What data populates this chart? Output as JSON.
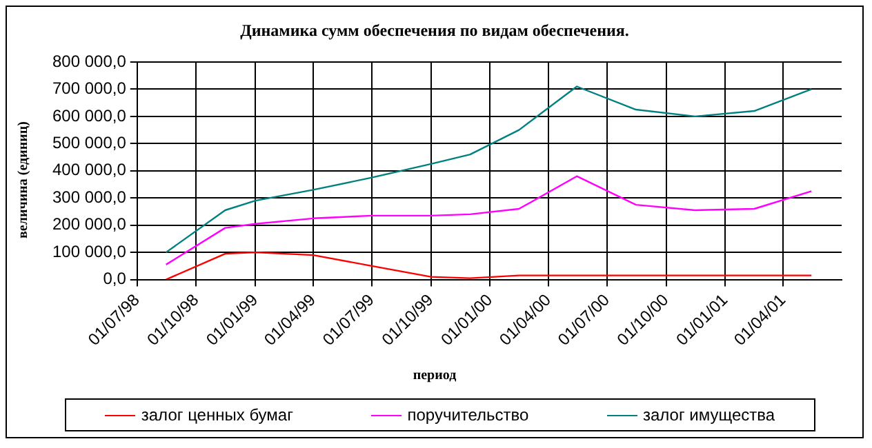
{
  "chart_data": {
    "type": "line",
    "title": "Динамика сумм обеспечения по видам обеспечения.",
    "xlabel": "период",
    "ylabel": "величина (единиц)",
    "x": [
      "1998-08-15",
      "1998-11-15",
      "1999-01-01",
      "1999-04-01",
      "1999-07-01",
      "1999-10-01",
      "1999-12-01",
      "2000-02-15",
      "2000-05-15",
      "2000-08-15",
      "2000-11-15",
      "2001-02-15",
      "2001-05-15"
    ],
    "series": [
      {
        "name": "залог ценных бумаг",
        "color": "#ff0000",
        "values": [
          0,
          95000,
          100000,
          90000,
          50000,
          10000,
          5000,
          15000,
          15000,
          15000,
          15000,
          15000,
          15000
        ]
      },
      {
        "name": "поручительство",
        "color": "#ff00ff",
        "values": [
          55000,
          190000,
          205000,
          225000,
          235000,
          235000,
          240000,
          260000,
          380000,
          275000,
          255000,
          260000,
          325000
        ]
      },
      {
        "name": "залог имущества",
        "color": "#008080",
        "values": [
          100000,
          255000,
          290000,
          330000,
          375000,
          425000,
          460000,
          550000,
          710000,
          625000,
          600000,
          620000,
          700000
        ]
      }
    ],
    "xlim": [
      "1998-07-01",
      "2001-07-01"
    ],
    "xticks": [
      {
        "value": "1998-07-01",
        "label": "01/07/98"
      },
      {
        "value": "1998-10-01",
        "label": "01/10/98"
      },
      {
        "value": "1999-01-01",
        "label": "01/01/99"
      },
      {
        "value": "1999-04-01",
        "label": "01/04/99"
      },
      {
        "value": "1999-07-01",
        "label": "01/07/99"
      },
      {
        "value": "1999-10-01",
        "label": "01/10/99"
      },
      {
        "value": "2000-01-01",
        "label": "01/01/00"
      },
      {
        "value": "2000-04-01",
        "label": "01/04/00"
      },
      {
        "value": "2000-07-01",
        "label": "01/07/00"
      },
      {
        "value": "2000-10-01",
        "label": "01/10/00"
      },
      {
        "value": "2001-01-01",
        "label": "01/01/01"
      },
      {
        "value": "2001-04-01",
        "label": "01/04/01"
      }
    ],
    "ylim": [
      0,
      800000
    ],
    "yticks": [
      {
        "value": 0,
        "label": "0,0"
      },
      {
        "value": 100000,
        "label": "100 000,0"
      },
      {
        "value": 200000,
        "label": "200 000,0"
      },
      {
        "value": 300000,
        "label": "300 000,0"
      },
      {
        "value": 400000,
        "label": "400 000,0"
      },
      {
        "value": 500000,
        "label": "500 000,0"
      },
      {
        "value": 600000,
        "label": "600 000,0"
      },
      {
        "value": 700000,
        "label": "700 000,0"
      },
      {
        "value": 800000,
        "label": "800 000,0"
      }
    ],
    "grid": true,
    "legend": "bottom",
    "marker": "none",
    "line_style": "solid"
  }
}
